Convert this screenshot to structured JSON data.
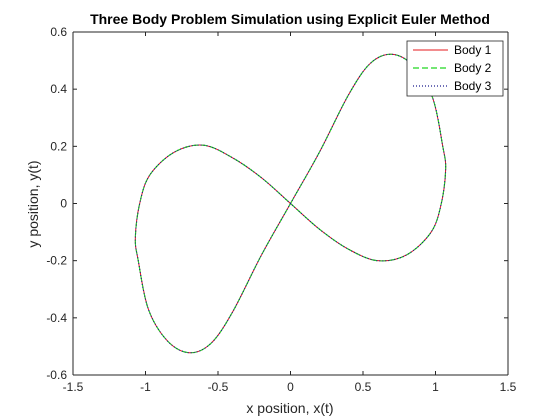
{
  "chart_data": {
    "type": "line",
    "title": "Three Body Problem Simulation using Explicit Euler Method",
    "xlabel": "x position, x(t)",
    "ylabel": "y position, y(t)",
    "xlim": [
      -1.5,
      1.5
    ],
    "ylim": [
      -0.6,
      0.6
    ],
    "xticks": [
      -1.5,
      -1,
      -0.5,
      0,
      0.5,
      1,
      1.5
    ],
    "xtick_labels": [
      "-1.5",
      "-1",
      "-0.5",
      "0",
      "0.5",
      "1",
      "1.5"
    ],
    "yticks": [
      -0.6,
      -0.4,
      -0.2,
      0,
      0.2,
      0.4,
      0.6
    ],
    "ytick_labels": [
      "-0.6",
      "-0.4",
      "-0.2",
      "0",
      "0.2",
      "0.4",
      "0.6"
    ],
    "grid": false,
    "legend_position": "top-right",
    "series": [
      {
        "name": "Body 1",
        "color": "#e41a1c",
        "line_style": "solid",
        "points": [
          [
            0,
            0
          ],
          [
            0.2,
            0.18
          ],
          [
            0.4,
            0.38
          ],
          [
            0.55,
            0.49
          ],
          [
            0.7,
            0.522
          ],
          [
            0.85,
            0.48
          ],
          [
            0.98,
            0.37
          ],
          [
            1.05,
            0.2
          ],
          [
            1.07,
            0.12
          ],
          [
            1.04,
            0
          ],
          [
            0.97,
            -0.1
          ],
          [
            0.8,
            -0.18
          ],
          [
            0.6,
            -0.2
          ],
          [
            0.4,
            -0.16
          ],
          [
            0.2,
            -0.09
          ],
          [
            0,
            0
          ],
          [
            -0.2,
            0.09
          ],
          [
            -0.4,
            0.16
          ],
          [
            -0.6,
            0.204
          ],
          [
            -0.8,
            0.18
          ],
          [
            -0.97,
            0.1
          ],
          [
            -1.04,
            0
          ],
          [
            -1.07,
            -0.12
          ],
          [
            -1.05,
            -0.2
          ],
          [
            -0.98,
            -0.37
          ],
          [
            -0.85,
            -0.48
          ],
          [
            -0.7,
            -0.522
          ],
          [
            -0.55,
            -0.49
          ],
          [
            -0.4,
            -0.38
          ],
          [
            -0.2,
            -0.18
          ],
          [
            0,
            0
          ]
        ]
      },
      {
        "name": "Body 2",
        "color": "#22d622",
        "line_style": "dashed",
        "points": [
          [
            0,
            0
          ],
          [
            0.2,
            0.18
          ],
          [
            0.4,
            0.38
          ],
          [
            0.55,
            0.49
          ],
          [
            0.7,
            0.522
          ],
          [
            0.85,
            0.48
          ],
          [
            0.98,
            0.37
          ],
          [
            1.05,
            0.2
          ],
          [
            1.07,
            0.12
          ],
          [
            1.04,
            0
          ],
          [
            0.97,
            -0.1
          ],
          [
            0.8,
            -0.18
          ],
          [
            0.6,
            -0.2
          ],
          [
            0.4,
            -0.16
          ],
          [
            0.2,
            -0.09
          ],
          [
            0,
            0
          ],
          [
            -0.2,
            0.09
          ],
          [
            -0.4,
            0.16
          ],
          [
            -0.6,
            0.204
          ],
          [
            -0.8,
            0.18
          ],
          [
            -0.97,
            0.1
          ],
          [
            -1.04,
            0
          ],
          [
            -1.07,
            -0.12
          ],
          [
            -1.05,
            -0.2
          ],
          [
            -0.98,
            -0.37
          ],
          [
            -0.85,
            -0.48
          ],
          [
            -0.7,
            -0.522
          ],
          [
            -0.55,
            -0.49
          ],
          [
            -0.4,
            -0.38
          ],
          [
            -0.2,
            -0.18
          ],
          [
            0,
            0
          ]
        ]
      },
      {
        "name": "Body 3",
        "color": "#1a1a8c",
        "line_style": "dotted",
        "points": [
          [
            0,
            0
          ],
          [
            0.2,
            0.18
          ],
          [
            0.4,
            0.38
          ],
          [
            0.55,
            0.49
          ],
          [
            0.7,
            0.522
          ],
          [
            0.85,
            0.48
          ],
          [
            0.98,
            0.37
          ],
          [
            1.05,
            0.2
          ],
          [
            1.07,
            0.12
          ],
          [
            1.04,
            0
          ],
          [
            0.97,
            -0.1
          ],
          [
            0.8,
            -0.18
          ],
          [
            0.6,
            -0.2
          ],
          [
            0.4,
            -0.16
          ],
          [
            0.2,
            -0.09
          ],
          [
            0,
            0
          ],
          [
            -0.2,
            0.09
          ],
          [
            -0.4,
            0.16
          ],
          [
            -0.6,
            0.204
          ],
          [
            -0.8,
            0.18
          ],
          [
            -0.97,
            0.1
          ],
          [
            -1.04,
            0
          ],
          [
            -1.07,
            -0.12
          ],
          [
            -1.05,
            -0.2
          ],
          [
            -0.98,
            -0.37
          ],
          [
            -0.85,
            -0.48
          ],
          [
            -0.7,
            -0.522
          ],
          [
            -0.55,
            -0.49
          ],
          [
            -0.4,
            -0.38
          ],
          [
            -0.2,
            -0.18
          ],
          [
            0,
            0
          ]
        ]
      }
    ]
  }
}
